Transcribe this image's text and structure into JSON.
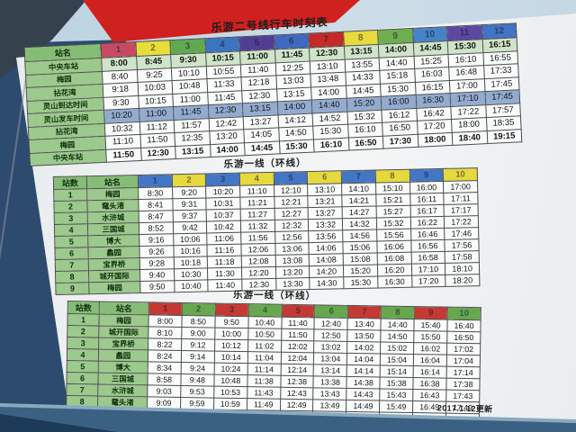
{
  "scene": {
    "wall-blue": "#bad2e0",
    "wall-dark-corner": "#36414e",
    "wall-navy": "#2d4b6e",
    "red-object": "#d0211f",
    "paper": "#f0f2f4",
    "shelf-band": "#3a6182",
    "shelf-highlight": "#8aa9bf",
    "shelf-corner": "#1d3a58"
  },
  "footer": {
    "updated": "2017.1.12更新"
  },
  "table1": {
    "title": "乐游二号线行车时刻表",
    "lead_headers": [
      "站名"
    ],
    "lead_header_color": "#86bd76",
    "station_cell_color": "#9cc98c",
    "columns": [
      "1",
      "2",
      "3",
      "4",
      "5",
      "6",
      "7",
      "8",
      "9",
      "10",
      "11",
      "12"
    ],
    "header_colors": [
      "#c84a62",
      "#e8dd3a",
      "#61a951",
      "#3d74c0",
      "#503f90",
      "#3f69be",
      "#c42a28",
      "#e8d93c",
      "#6fae4e",
      "#4583c8",
      "#5c48a2",
      "#4273c4"
    ],
    "row_highlight_green": "#cfe4c8",
    "row_highlight_blue": "#92abd0",
    "rows": [
      {
        "lead": [
          "中央车站"
        ],
        "bold": true,
        "bg": "#cfe4c8",
        "times": [
          "8:00",
          "8:45",
          "9:30",
          "10:15",
          "11:00",
          "11:45",
          "12:30",
          "13:15",
          "14:00",
          "14:45",
          "15:30",
          "16:15"
        ]
      },
      {
        "lead": [
          "梅园"
        ],
        "times": [
          "8:40",
          "9:25",
          "10:10",
          "10:55",
          "11:40",
          "12:25",
          "13:10",
          "13:55",
          "14:40",
          "15:25",
          "16:10",
          "16:55"
        ]
      },
      {
        "lead": [
          "拈花湾"
        ],
        "times": [
          "9:18",
          "10:03",
          "10:48",
          "11:33",
          "12:18",
          "13:03",
          "13:48",
          "14:33",
          "15:18",
          "16:03",
          "16:48",
          "17:33"
        ]
      },
      {
        "lead": [
          "灵山到达时间"
        ],
        "times": [
          "9:30",
          "10:15",
          "11:00",
          "11:45",
          "12:30",
          "13:15",
          "14:00",
          "14:45",
          "15:30",
          "16:15",
          "17:00",
          "17:45"
        ]
      },
      {
        "lead": [
          "灵山发车时间"
        ],
        "bg": "#92abd0",
        "times": [
          "10:20",
          "11:00",
          "11:45",
          "12:30",
          "13:15",
          "14:00",
          "14:40",
          "15:20",
          "16:00",
          "16:30",
          "17:10",
          "17:45"
        ]
      },
      {
        "lead": [
          "拈花湾"
        ],
        "times": [
          "10:32",
          "11:12",
          "11:57",
          "12:42",
          "13:27",
          "14:12",
          "14:52",
          "15:32",
          "16:12",
          "16:42",
          "17:22",
          "17:57"
        ]
      },
      {
        "lead": [
          "梅园"
        ],
        "times": [
          "11:10",
          "11:50",
          "12:35",
          "13:20",
          "14:05",
          "14:50",
          "15:30",
          "16:10",
          "16:50",
          "17:20",
          "18:00",
          "18:35"
        ]
      },
      {
        "lead": [
          "中央车站"
        ],
        "bold": true,
        "times": [
          "11:50",
          "12:30",
          "13:15",
          "14:00",
          "14:45",
          "15:30",
          "16:10",
          "16:50",
          "17:30",
          "18:00",
          "18:40",
          "19:15"
        ]
      }
    ]
  },
  "table2": {
    "title": "乐游一线（环线）",
    "lead_headers": [
      "站数",
      "站名"
    ],
    "lead_header_color": "#86bd76",
    "station_cell_color": "#9cc98c",
    "columns": [
      "1",
      "2",
      "3",
      "4",
      "5",
      "6",
      "7",
      "8",
      "9",
      "10"
    ],
    "header_colors": [
      "#4377c6",
      "#e6d93e",
      "#4377c6",
      "#e6d93e",
      "#4377c6",
      "#e6d93e",
      "#4377c6",
      "#e6d93e",
      "#4377c6",
      "#e6d93e"
    ],
    "rows": [
      {
        "lead": [
          "1",
          "梅园"
        ],
        "times": [
          "8:30",
          "9:20",
          "10:20",
          "11:10",
          "12:10",
          "13:10",
          "14:10",
          "15:10",
          "16:00",
          "17:00"
        ]
      },
      {
        "lead": [
          "2",
          "鼋头渚"
        ],
        "times": [
          "8:41",
          "9:31",
          "10:31",
          "11:21",
          "12:21",
          "13:21",
          "14:21",
          "15:21",
          "16:11",
          "17:11"
        ]
      },
      {
        "lead": [
          "3",
          "水浒城"
        ],
        "times": [
          "8:47",
          "9:37",
          "10:37",
          "11:27",
          "12:27",
          "13:27",
          "14:27",
          "15:27",
          "16:17",
          "17:17"
        ]
      },
      {
        "lead": [
          "4",
          "三国城"
        ],
        "times": [
          "8:52",
          "9:42",
          "10:42",
          "11:32",
          "12:32",
          "13:32",
          "14:32",
          "15:32",
          "16:22",
          "17:22"
        ]
      },
      {
        "lead": [
          "5",
          "博大"
        ],
        "times": [
          "9:16",
          "10:06",
          "11:06",
          "11:56",
          "12:56",
          "13:56",
          "14:56",
          "15:56",
          "16:46",
          "17:46"
        ]
      },
      {
        "lead": [
          "6",
          "蠡园"
        ],
        "times": [
          "9:26",
          "10:16",
          "11:16",
          "12:06",
          "13:06",
          "14:06",
          "15:06",
          "16:06",
          "16:56",
          "17:56"
        ]
      },
      {
        "lead": [
          "7",
          "宝界桥"
        ],
        "times": [
          "9:28",
          "10:18",
          "11:18",
          "12:08",
          "13:08",
          "14:08",
          "15:08",
          "16:08",
          "16:58",
          "17:58"
        ]
      },
      {
        "lead": [
          "8",
          "城开国际"
        ],
        "times": [
          "9:40",
          "10:30",
          "11:30",
          "12:20",
          "13:20",
          "14:20",
          "15:20",
          "16:20",
          "17:10",
          "18:10"
        ]
      },
      {
        "lead": [
          "9",
          "梅园"
        ],
        "times": [
          "9:50",
          "10:40",
          "11:40",
          "12:30",
          "13:30",
          "14:30",
          "15:30",
          "16:30",
          "17:20",
          "18:20"
        ]
      }
    ]
  },
  "table3": {
    "title": "乐游一线（环线）",
    "lead_headers": [
      "站数",
      "站名"
    ],
    "lead_header_color": "#86bd76",
    "station_cell_color": "#9cc98c",
    "columns": [
      "1",
      "2",
      "3",
      "4",
      "5",
      "6",
      "7",
      "8",
      "9",
      "10"
    ],
    "header_colors": [
      "#c33a35",
      "#67a84f",
      "#c33a35",
      "#67a84f",
      "#c33a35",
      "#67a84f",
      "#c33a35",
      "#67a84f",
      "#c33a35",
      "#67a84f"
    ],
    "rows": [
      {
        "lead": [
          "1",
          "梅园"
        ],
        "times": [
          "8:00",
          "8:50",
          "9:50",
          "10:40",
          "11:40",
          "12:40",
          "13:40",
          "14:40",
          "15:40",
          "16:40"
        ]
      },
      {
        "lead": [
          "2",
          "城开国际"
        ],
        "times": [
          "8:10",
          "9:00",
          "10:00",
          "10:50",
          "11:50",
          "12:50",
          "13:50",
          "14:50",
          "15:50",
          "16:50"
        ]
      },
      {
        "lead": [
          "3",
          "宝界桥"
        ],
        "times": [
          "8:22",
          "9:12",
          "10:12",
          "11:02",
          "12:02",
          "13:02",
          "14:02",
          "15:02",
          "16:02",
          "17:02"
        ]
      },
      {
        "lead": [
          "4",
          "蠡园"
        ],
        "times": [
          "8:24",
          "9:14",
          "10:14",
          "11:04",
          "12:04",
          "13:04",
          "14:04",
          "15:04",
          "16:04",
          "17:04"
        ]
      },
      {
        "lead": [
          "5",
          "博大"
        ],
        "times": [
          "8:34",
          "9:24",
          "10:24",
          "11:14",
          "12:14",
          "13:14",
          "14:14",
          "15:14",
          "16:14",
          "17:14"
        ]
      },
      {
        "lead": [
          "6",
          "三国城"
        ],
        "times": [
          "8:58",
          "9:48",
          "10:48",
          "11:38",
          "12:38",
          "13:38",
          "14:38",
          "15:38",
          "16:38",
          "17:38"
        ]
      },
      {
        "lead": [
          "7",
          "水浒城"
        ],
        "times": [
          "9:03",
          "9:53",
          "10:53",
          "11:43",
          "12:43",
          "13:43",
          "14:43",
          "15:43",
          "16:43",
          "17:43"
        ]
      },
      {
        "lead": [
          "8",
          "鼋头渚"
        ],
        "times": [
          "9:09",
          "9:59",
          "10:59",
          "11:49",
          "12:49",
          "13:49",
          "14:49",
          "15:49",
          "16:49",
          "17:49"
        ]
      },
      {
        "lead": [
          "9",
          "梅园"
        ],
        "times": [
          "9:20",
          "10:10",
          "11:10",
          "12:00",
          "13:00",
          "14:00",
          "15:00",
          "16:00",
          "17:00",
          "18:00"
        ]
      }
    ]
  }
}
